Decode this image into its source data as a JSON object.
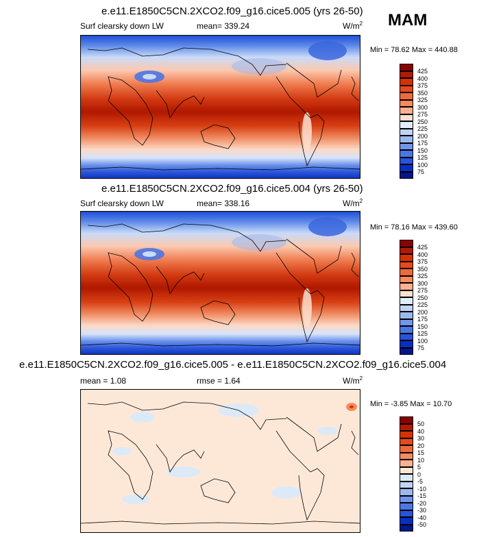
{
  "season": "MAM",
  "chart_data": [
    {
      "type": "heatmap",
      "title": "e.e11.E1850C5CN.2XCO2.f09_g16.cice5.005 (yrs 26-50)",
      "variable": "Surf clearsky down LW",
      "mean_text": "mean= 339.24",
      "units": "W/m",
      "units_exp": "2",
      "min_text": "Min = 78.62",
      "max_text": "Max = 440.88",
      "colorbar_levels": [
        "425",
        "400",
        "375",
        "350",
        "325",
        "300",
        "275",
        "250",
        "225",
        "200",
        "175",
        "150",
        "125",
        "100",
        "75"
      ],
      "colorbar_colors": [
        "#8b0000",
        "#b21a00",
        "#d43200",
        "#e44a1f",
        "#ee6a3c",
        "#f68a60",
        "#fbb191",
        "#fde0cf",
        "#e3ecfa",
        "#c2d4f6",
        "#9cb8f0",
        "#7296ea",
        "#4c76e4",
        "#2854d8",
        "#0a2fc0",
        "#05168a"
      ]
    },
    {
      "type": "heatmap",
      "title": "e.e11.E1850C5CN.2XCO2.f09_g16.cice5.004 (yrs 26-50)",
      "variable": "Surf clearsky down LW",
      "mean_text": "mean= 338.16",
      "units": "W/m",
      "units_exp": "2",
      "min_text": "Min = 78.16",
      "max_text": "Max = 439.60",
      "colorbar_levels": [
        "425",
        "400",
        "375",
        "350",
        "325",
        "300",
        "275",
        "250",
        "225",
        "200",
        "175",
        "150",
        "125",
        "100",
        "75"
      ],
      "colorbar_colors": [
        "#8b0000",
        "#b21a00",
        "#d43200",
        "#e44a1f",
        "#ee6a3c",
        "#f68a60",
        "#fbb191",
        "#fde0cf",
        "#e3ecfa",
        "#c2d4f6",
        "#9cb8f0",
        "#7296ea",
        "#4c76e4",
        "#2854d8",
        "#0a2fc0",
        "#05168a"
      ]
    },
    {
      "type": "heatmap",
      "title": "e.e11.E1850C5CN.2XCO2.f09_g16.cice5.005 - e.e11.E1850C5CN.2XCO2.f09_g16.cice5.004",
      "mean_text": "mean =   1.08",
      "rmse_text": "rmse =   1.64",
      "units": "W/m",
      "units_exp": "2",
      "min_text": "Min = -3.85",
      "max_text": "Max = 10.70",
      "colorbar_levels": [
        "50",
        "40",
        "30",
        "20",
        "15",
        "10",
        "5",
        "0",
        "-5",
        "-10",
        "-15",
        "-20",
        "-30",
        "-40",
        "-50"
      ],
      "colorbar_colors": [
        "#8b0000",
        "#b21a00",
        "#d43200",
        "#e44a1f",
        "#ee6a3c",
        "#f68a60",
        "#fbb191",
        "#fde8d8",
        "#dceaf8",
        "#c2d4f6",
        "#9cb8f0",
        "#7296ea",
        "#4c76e4",
        "#2854d8",
        "#0a2fc0",
        "#05168a"
      ]
    }
  ]
}
